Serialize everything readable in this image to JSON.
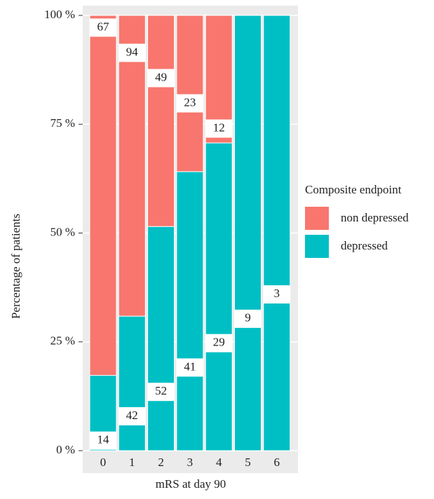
{
  "chart_data": {
    "type": "bar",
    "stacked": true,
    "x_label": "mRS at day 90",
    "y_label": "Percentage of patients",
    "categories": [
      "0",
      "1",
      "2",
      "3",
      "4",
      "5",
      "6"
    ],
    "series": [
      {
        "name": "non depressed",
        "color": "#F8766D",
        "values": [
          82.7,
          69.1,
          48.5,
          35.9,
          29.3,
          0,
          0
        ],
        "counts": [
          67,
          94,
          49,
          23,
          12,
          null,
          null
        ]
      },
      {
        "name": "depressed",
        "color": "#00BFC4",
        "values": [
          17.3,
          30.9,
          51.5,
          64.1,
          70.7,
          100,
          100
        ],
        "counts": [
          14,
          42,
          52,
          41,
          29,
          9,
          3
        ]
      }
    ],
    "ylim": [
      0,
      100
    ],
    "yticks": [
      {
        "value": 0,
        "label": "0 %"
      },
      {
        "value": 25,
        "label": "25 %"
      },
      {
        "value": 50,
        "label": "50 %"
      },
      {
        "value": 75,
        "label": "75 %"
      },
      {
        "value": 100,
        "label": "100 %"
      }
    ],
    "grid": true,
    "legend": {
      "title": "Composite endpoint",
      "position": "right"
    }
  }
}
